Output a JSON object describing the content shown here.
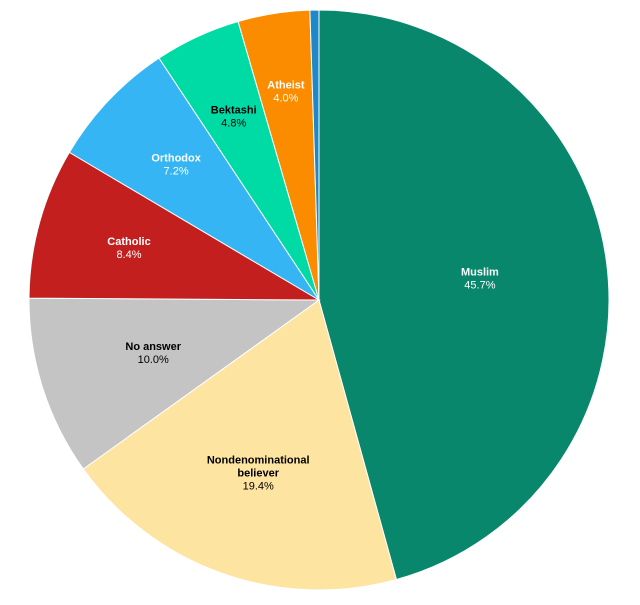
{
  "chart_data": {
    "type": "pie",
    "start": "12 o'clock, clockwise",
    "slices": [
      {
        "label": "Muslim",
        "value": 45.7,
        "value_label": "45.7%",
        "color": "#08876c",
        "text_color": "#ffffff"
      },
      {
        "label": "Nondenominational believer",
        "value": 19.4,
        "value_label": "19.4%",
        "color": "#fde4a0",
        "text_color": "#000000"
      },
      {
        "label": "No answer",
        "value": 10.0,
        "value_label": "10.0%",
        "color": "#c4c4c4",
        "text_color": "#000000"
      },
      {
        "label": "Catholic",
        "value": 8.4,
        "value_label": "8.4%",
        "color": "#c31f1f",
        "text_color": "#ffffff"
      },
      {
        "label": "Orthodox",
        "value": 7.2,
        "value_label": "7.2%",
        "color": "#36b5f4",
        "text_color": "#ffffff"
      },
      {
        "label": "Bektashi",
        "value": 4.8,
        "value_label": "4.8%",
        "color": "#00dba6",
        "text_color": "#000000"
      },
      {
        "label": "Atheist",
        "value": 4.0,
        "value_label": "4.0%",
        "color": "#fb8c00",
        "text_color": "#ffffff"
      },
      {
        "label": "",
        "value": 0.5,
        "value_label": "",
        "color": "#1e88c8",
        "text_color": "#ffffff"
      }
    ]
  }
}
